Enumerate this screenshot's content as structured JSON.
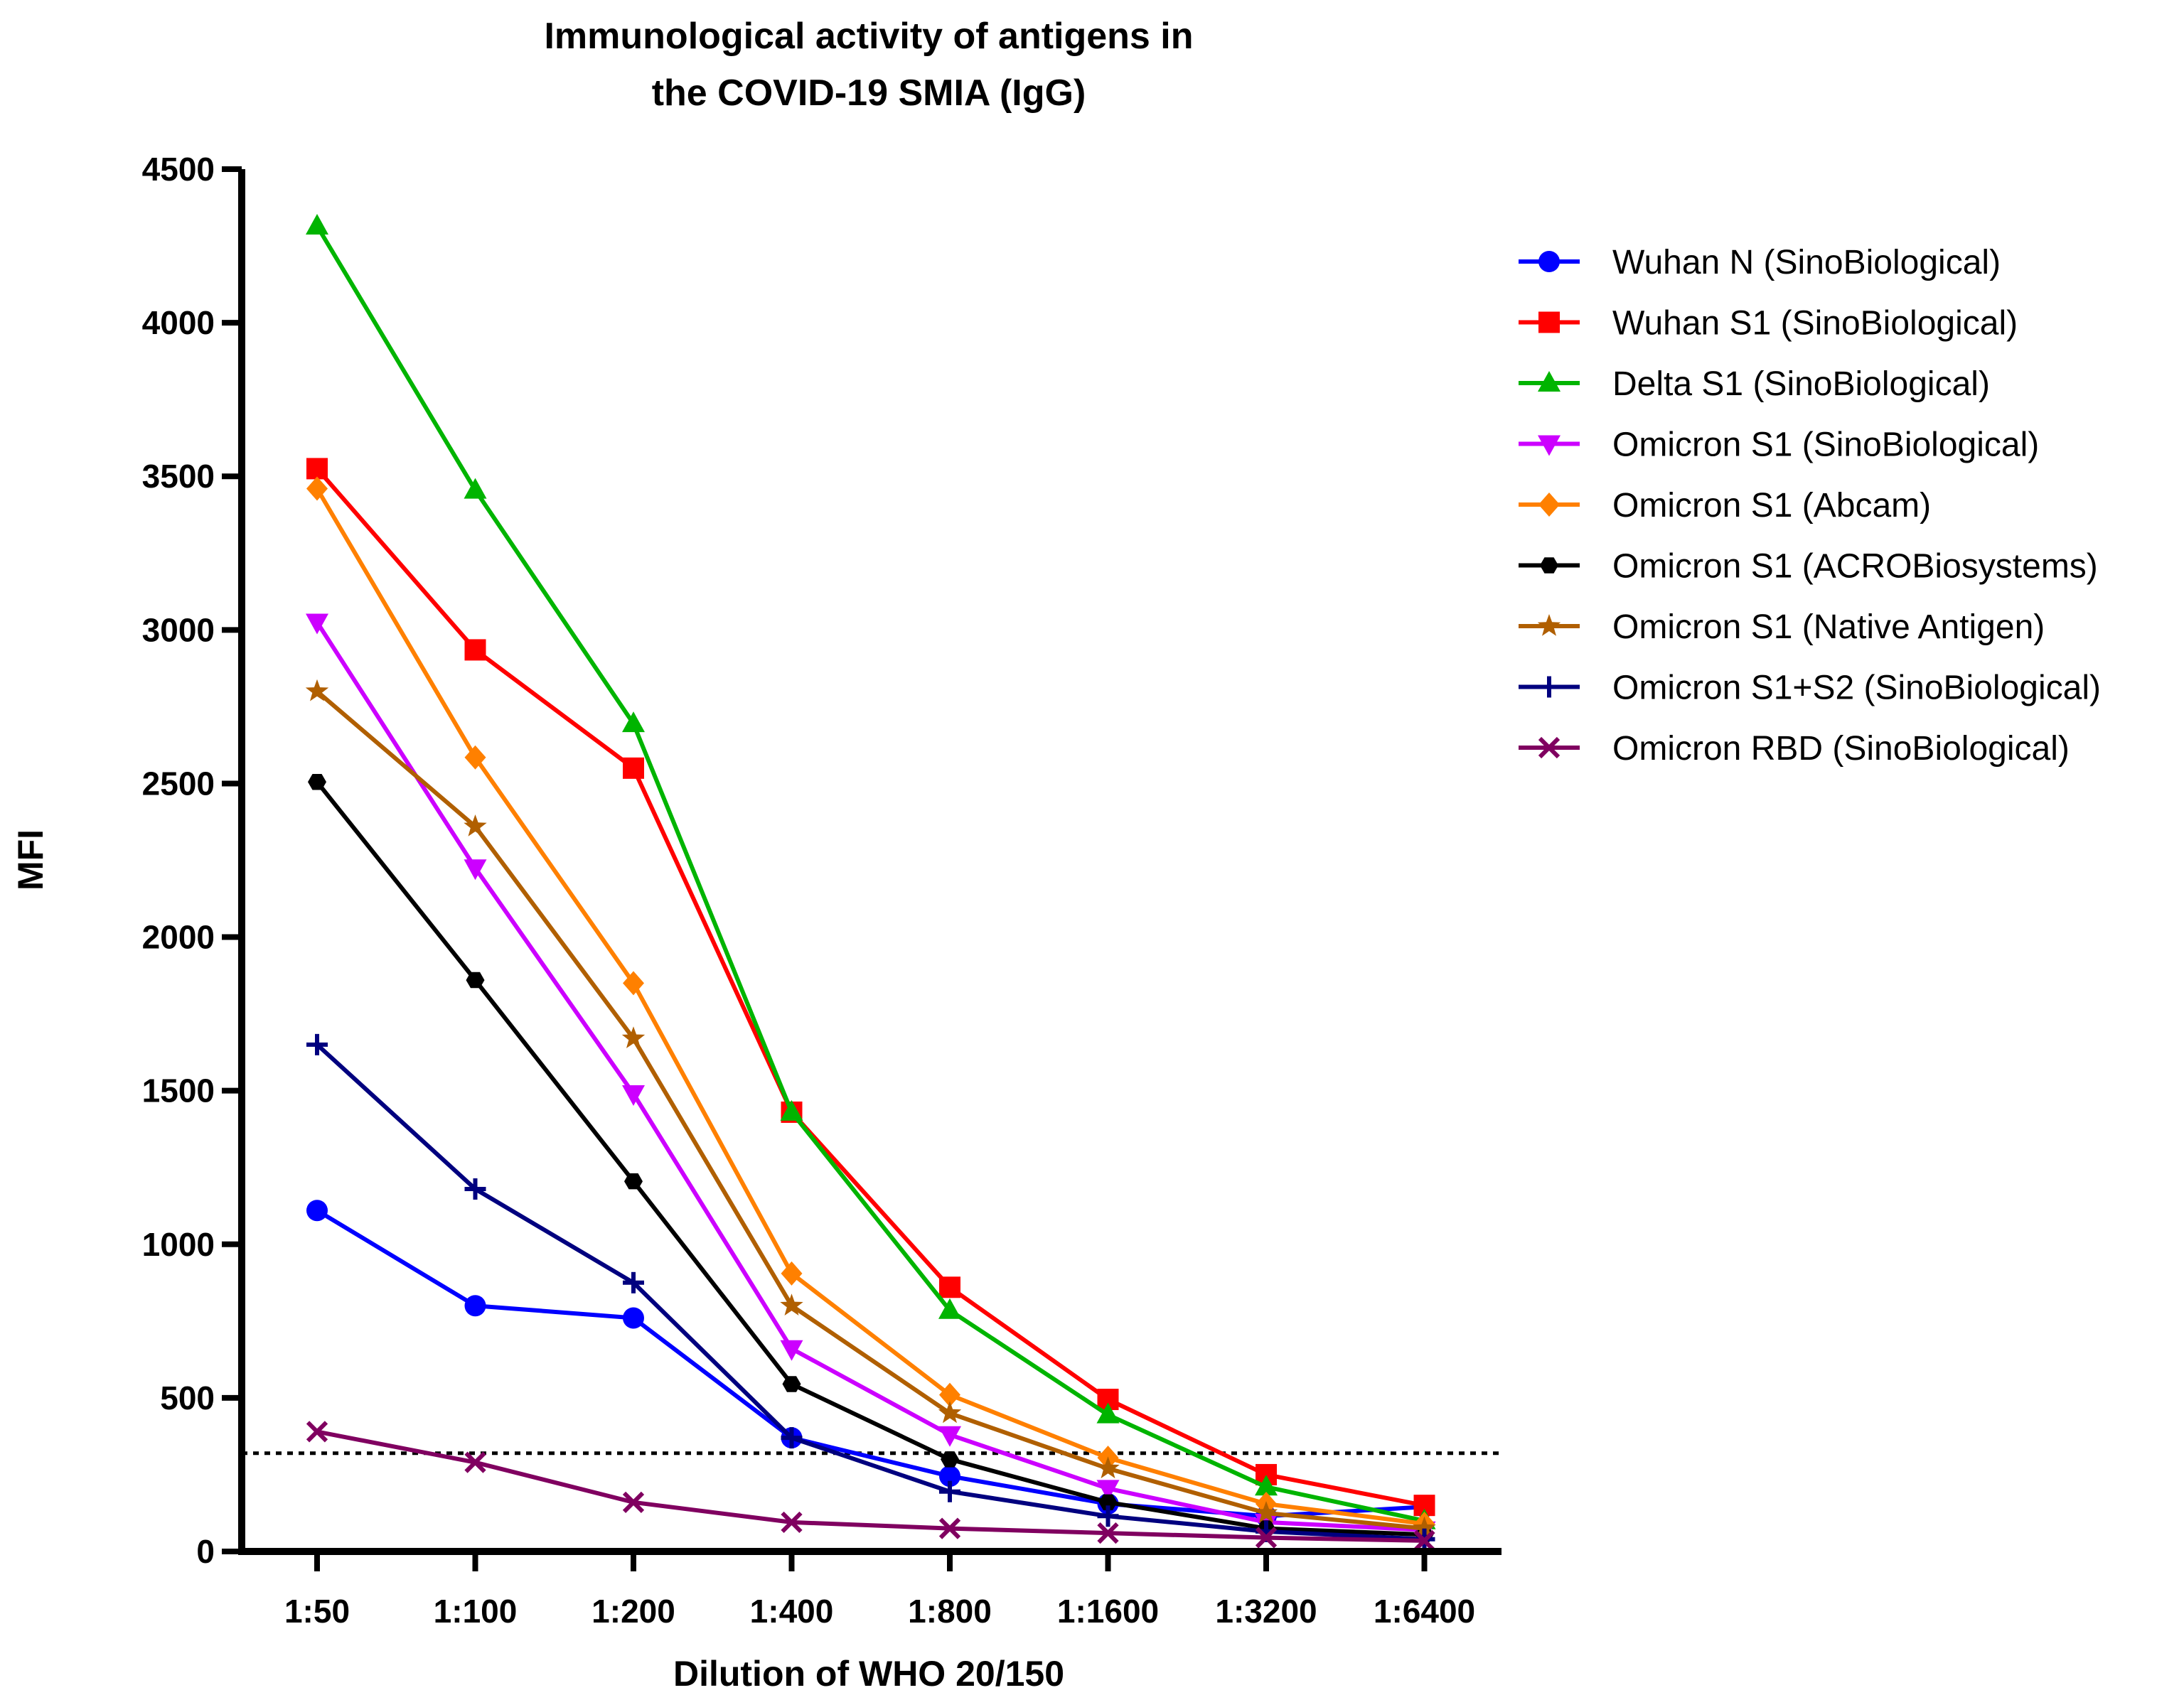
{
  "chart_data": {
    "type": "line",
    "title": [
      "Immunological activity of antigens in",
      "the COVID-19 SMIA (IgG)"
    ],
    "xlabel": "Dilution of WHO 20/150",
    "ylabel": "MFI",
    "categories": [
      "1:50",
      "1:100",
      "1:200",
      "1:400",
      "1:800",
      "1:1600",
      "1:3200",
      "1:6400"
    ],
    "ylim": [
      0,
      4500
    ],
    "yticks": [
      0,
      500,
      1000,
      1500,
      2000,
      2500,
      3000,
      3500,
      4000,
      4500
    ],
    "yticks_labels": [
      "0",
      "500",
      "1000",
      "1500",
      "2000",
      "2500",
      "3000",
      "3500",
      "4000",
      "4500"
    ],
    "grid": false,
    "legend_position": "right",
    "threshold": {
      "value": 320,
      "style": "dotted"
    },
    "series": [
      {
        "name": "Wuhan N (SinoBiological)",
        "color": "#0000ff",
        "marker": "circle",
        "values": [
          1110,
          800,
          760,
          370,
          245,
          155,
          115,
          145
        ]
      },
      {
        "name": "Wuhan S1 (SinoBiological)",
        "color": "#ff0000",
        "marker": "square",
        "values": [
          3525,
          2935,
          2550,
          1430,
          860,
          495,
          250,
          150
        ]
      },
      {
        "name": "Delta S1 (SinoBiological)",
        "color": "#00b400",
        "marker": "triangle-up",
        "values": [
          4315,
          3455,
          2695,
          1430,
          785,
          445,
          210,
          100
        ]
      },
      {
        "name": "Omicron S1 (SinoBiological)",
        "color": "#cc00ff",
        "marker": "triangle-down",
        "values": [
          3025,
          2225,
          1490,
          660,
          380,
          205,
          95,
          70
        ]
      },
      {
        "name": "Omicron S1 (Abcam)",
        "color": "#ff8000",
        "marker": "diamond",
        "values": [
          3460,
          2585,
          1850,
          905,
          510,
          305,
          155,
          90
        ]
      },
      {
        "name": "Omicron S1 (ACROBiosystems)",
        "color": "#000000",
        "marker": "hexagon",
        "values": [
          2505,
          1860,
          1205,
          545,
          300,
          160,
          75,
          55
        ]
      },
      {
        "name": "Omicron S1 (Native Antigen)",
        "color": "#b05f00",
        "marker": "star",
        "values": [
          2800,
          2360,
          1670,
          800,
          450,
          270,
          125,
          75
        ]
      },
      {
        "name": "Omicron S1+S2 (SinoBiological)",
        "color": "#00007f",
        "marker": "plus",
        "values": [
          1650,
          1180,
          875,
          370,
          195,
          115,
          65,
          40
        ]
      },
      {
        "name": "Omicron RBD (SinoBiological)",
        "color": "#800060",
        "marker": "cross",
        "values": [
          390,
          290,
          160,
          95,
          75,
          60,
          45,
          35
        ]
      }
    ]
  }
}
